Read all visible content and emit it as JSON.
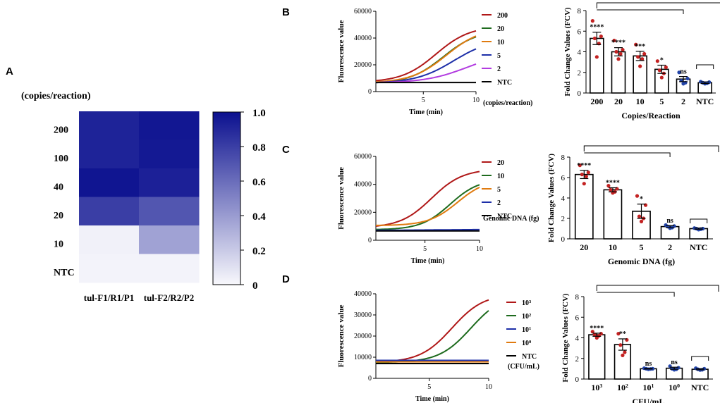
{
  "panel_labels": {
    "a": "A",
    "b": "B",
    "c": "C",
    "d": "D"
  },
  "colors": {
    "dark_red": "#b01818",
    "green": "#1e6b1e",
    "orange": "#e07b10",
    "blue": "#1d2fa8",
    "purple": "#b23ce0",
    "black": "#000000",
    "dot_red": "#c32222",
    "dot_blue": "#2244a8",
    "heat_max": "#0b108f"
  },
  "chart_data": [
    {
      "id": "heatmap",
      "type": "heatmap",
      "title": "(copies/reaction)",
      "rows": [
        "200",
        "100",
        "40",
        "20",
        "10",
        "NTC"
      ],
      "columns": [
        "tul-F1/R1/P1",
        "tul-F2/R2/P2"
      ],
      "values": [
        [
          0.92,
          0.97
        ],
        [
          0.92,
          0.96
        ],
        [
          0.98,
          0.93
        ],
        [
          0.8,
          0.7
        ],
        [
          0.03,
          0.37
        ],
        [
          0.02,
          0.02
        ]
      ],
      "colorbar": {
        "min": 0,
        "max": 1,
        "ticks": [
          "0",
          "0.2",
          "0.4",
          "0.6",
          "0.8",
          "1.0"
        ]
      }
    },
    {
      "id": "curveB",
      "type": "line",
      "xlabel": "Time (min)",
      "ylabel": "Fluorescence value",
      "xlim": [
        0.5,
        10
      ],
      "ylim": [
        0,
        60000
      ],
      "xticks": [
        "5",
        "10"
      ],
      "yticks": [
        "0",
        "20000",
        "40000",
        "60000"
      ],
      "legend_note": "(copies/reaction)",
      "series": [
        {
          "name": "200",
          "color": "#b01818",
          "base": 7000,
          "top": 49000,
          "mid": 6.2,
          "k": 0.62
        },
        {
          "name": "20",
          "color": "#1e6b1e",
          "base": 6000,
          "top": 46000,
          "mid": 6.9,
          "k": 0.62
        },
        {
          "name": "10",
          "color": "#e07b10",
          "base": 6500,
          "top": 48000,
          "mid": 7.2,
          "k": 0.6
        },
        {
          "name": "5",
          "color": "#1d2fa8",
          "base": 6200,
          "top": 40000,
          "mid": 7.9,
          "k": 0.55
        },
        {
          "name": "2",
          "color": "#b23ce0",
          "base": 6500,
          "top": 30000,
          "mid": 9.2,
          "k": 0.5
        },
        {
          "name": "NTC",
          "color": "#000000",
          "base": 6800,
          "top": 6800,
          "mid": 5,
          "k": 0
        }
      ]
    },
    {
      "id": "curveC",
      "type": "line",
      "xlabel": "Time (min)",
      "ylabel": "Fluorescence value",
      "xlim": [
        0.5,
        10
      ],
      "ylim": [
        0,
        60000
      ],
      "xticks": [
        "5",
        "10"
      ],
      "yticks": [
        "0",
        "20000",
        "40000",
        "60000"
      ],
      "legend_note": "Genomic DNA (fg)",
      "series": [
        {
          "name": "20",
          "color": "#b01818",
          "base": 9000,
          "top": 51000,
          "mid": 5.6,
          "k": 0.7
        },
        {
          "name": "10",
          "color": "#1e6b1e",
          "base": 7500,
          "top": 44000,
          "mid": 7.3,
          "k": 0.75
        },
        {
          "name": "5",
          "color": "#e07b10",
          "base": 10500,
          "top": 44000,
          "mid": 8.0,
          "k": 0.75
        },
        {
          "name": "2",
          "color": "#1d2fa8",
          "base": 7000,
          "top": 7800,
          "mid": 6,
          "k": 0.3
        },
        {
          "name": "NTC",
          "color": "#000000",
          "base": 6700,
          "top": 6700,
          "mid": 5,
          "k": 0
        }
      ]
    },
    {
      "id": "curveD",
      "type": "line",
      "xlabel": "Time (min)",
      "ylabel": "Fluorescence value",
      "xlim": [
        0.5,
        10
      ],
      "ylim": [
        0,
        40000
      ],
      "xticks": [
        "5",
        "10"
      ],
      "yticks": [
        "0",
        "10000",
        "20000",
        "30000",
        "40000"
      ],
      "legend_note": "(CFU/mL)",
      "series": [
        {
          "name": "10",
          "sup": "3",
          "color": "#b01818",
          "base": 7500,
          "top": 40000,
          "mid": 6.9,
          "k": 0.75
        },
        {
          "name": "10",
          "sup": "2",
          "color": "#1e6b1e",
          "base": 7500,
          "top": 40000,
          "mid": 8.5,
          "k": 0.75
        },
        {
          "name": "10",
          "sup": "1",
          "color": "#1d2fa8",
          "base": 8500,
          "top": 8500,
          "mid": 5,
          "k": 0
        },
        {
          "name": "10",
          "sup": "0",
          "color": "#e07b10",
          "base": 7800,
          "top": 7800,
          "mid": 5,
          "k": 0
        },
        {
          "name": "NTC",
          "color": "#000000",
          "base": 7000,
          "top": 7000,
          "mid": 5,
          "k": 0
        }
      ]
    },
    {
      "id": "barB",
      "type": "bar",
      "xlabel": "Copies/Reaction",
      "ylabel": "Fold Change Values (FCV)",
      "ylim": [
        0,
        8
      ],
      "yticks": [
        "0",
        "2",
        "4",
        "6",
        "8"
      ],
      "categories": [
        {
          "label": "200"
        },
        {
          "label": "20"
        },
        {
          "label": "10"
        },
        {
          "label": "5"
        },
        {
          "label": "2"
        },
        {
          "label": "NTC"
        }
      ],
      "values": [
        5.3,
        4.0,
        3.6,
        2.3,
        1.35,
        1.0
      ],
      "errors": [
        0.6,
        0.4,
        0.45,
        0.4,
        0.25,
        0.08
      ],
      "significance": [
        "****",
        "****",
        "***",
        "*",
        "ns",
        ""
      ],
      "points": [
        [
          7.0,
          5.5,
          5.3,
          4.8,
          3.5
        ],
        [
          5.1,
          4.2,
          4.0,
          3.8,
          3.3
        ],
        [
          4.7,
          3.8,
          3.5,
          3.3,
          2.6
        ],
        [
          3.1,
          2.5,
          2.2,
          1.9,
          1.5
        ],
        [
          2.0,
          1.4,
          1.2,
          1.0,
          0.9
        ],
        [
          1.1,
          1.05,
          1.0,
          0.95,
          0.9
        ]
      ],
      "point_colors": [
        "red",
        "red",
        "red",
        "red",
        "blue",
        "blue"
      ]
    },
    {
      "id": "barC",
      "type": "bar",
      "xlabel": "Genomic DNA (fg)",
      "ylabel": "Fold Change Values (FCV)",
      "ylim": [
        0,
        8
      ],
      "yticks": [
        "0",
        "2",
        "4",
        "6",
        "8"
      ],
      "categories": [
        {
          "label": "20"
        },
        {
          "label": "10"
        },
        {
          "label": "5"
        },
        {
          "label": "2"
        },
        {
          "label": "NTC"
        }
      ],
      "values": [
        6.3,
        4.8,
        2.7,
        1.2,
        1.0
      ],
      "errors": [
        0.4,
        0.2,
        0.7,
        0.1,
        0.06
      ],
      "significance": [
        "****",
        "****",
        "*",
        "ns",
        ""
      ],
      "points": [
        [
          7.2,
          6.5,
          6.3,
          6.1,
          5.4
        ],
        [
          5.2,
          4.9,
          4.8,
          4.6,
          4.5
        ],
        [
          4.2,
          3.3,
          2.2,
          2.0,
          1.7
        ],
        [
          1.35,
          1.25,
          1.2,
          1.1,
          1.05
        ],
        [
          1.05,
          1.0,
          1.0,
          0.95,
          0.9
        ]
      ],
      "point_colors": [
        "red",
        "red",
        "red",
        "blue",
        "blue"
      ]
    },
    {
      "id": "barD",
      "type": "bar",
      "xlabel": "CFU/mL",
      "ylabel": "Fold Change Values (FCV)",
      "ylim": [
        0,
        8
      ],
      "yticks": [
        "0",
        "2",
        "4",
        "6",
        "8"
      ],
      "categories": [
        {
          "label": "10",
          "sup": "3"
        },
        {
          "label": "10",
          "sup": "2"
        },
        {
          "label": "10",
          "sup": "1"
        },
        {
          "label": "10",
          "sup": "0"
        },
        {
          "label": "NTC"
        }
      ],
      "values": [
        4.3,
        3.35,
        1.0,
        1.05,
        0.95
      ],
      "errors": [
        0.15,
        0.55,
        0.03,
        0.1,
        0.05
      ],
      "significance": [
        "****",
        "**",
        "ns",
        "ns",
        ""
      ],
      "points": [
        [
          4.6,
          4.4,
          4.3,
          4.2,
          4.0
        ],
        [
          4.4,
          3.8,
          3.3,
          2.6,
          2.3
        ],
        [
          1.05,
          1.0,
          1.0,
          0.98,
          0.95
        ],
        [
          1.25,
          1.1,
          1.0,
          0.95,
          0.9
        ],
        [
          1.05,
          1.0,
          0.95,
          0.9,
          0.88
        ]
      ],
      "point_colors": [
        "red",
        "red",
        "blue",
        "blue",
        "blue"
      ]
    }
  ]
}
